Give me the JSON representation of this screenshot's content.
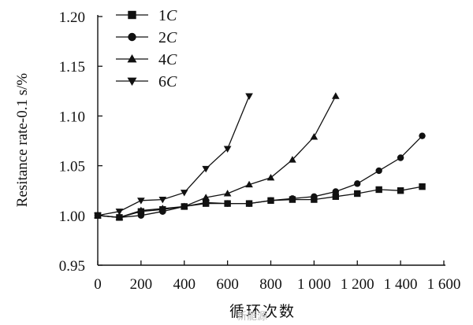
{
  "chart_data": {
    "type": "line",
    "title": "",
    "xlabel": "循环次数",
    "ylabel": "Resitance rate-0.1 s/%",
    "xlim": [
      0,
      1600
    ],
    "ylim": [
      0.95,
      1.2
    ],
    "x_ticks": [
      0,
      200,
      400,
      600,
      800,
      1000,
      1200,
      1400,
      1600
    ],
    "x_tick_labels": [
      "0",
      "200",
      "400",
      "600",
      "800",
      "1 000",
      "1 200",
      "1 400",
      "1 600"
    ],
    "y_ticks": [
      0.95,
      1.0,
      1.05,
      1.1,
      1.15,
      1.2
    ],
    "y_tick_labels": [
      "0.95",
      "1.00",
      "1.05",
      "1.10",
      "1.15",
      "1.20"
    ],
    "legend_position": "top-left",
    "grid": false,
    "series": [
      {
        "name": "1C",
        "marker": "square",
        "points": [
          [
            0,
            1.0
          ],
          [
            100,
            0.998
          ],
          [
            200,
            1.004
          ],
          [
            300,
            1.006
          ],
          [
            400,
            1.009
          ],
          [
            500,
            1.012
          ],
          [
            600,
            1.012
          ],
          [
            700,
            1.012
          ],
          [
            800,
            1.015
          ],
          [
            900,
            1.016
          ],
          [
            1000,
            1.016
          ],
          [
            1100,
            1.019
          ],
          [
            1200,
            1.022
          ],
          [
            1300,
            1.026
          ],
          [
            1400,
            1.025
          ],
          [
            1500,
            1.029
          ]
        ]
      },
      {
        "name": "2C",
        "marker": "circle",
        "points": [
          [
            0,
            1.0
          ],
          [
            100,
            0.998
          ],
          [
            200,
            1.0
          ],
          [
            300,
            1.004
          ],
          [
            400,
            1.009
          ],
          [
            500,
            1.013
          ],
          [
            600,
            1.012
          ],
          [
            700,
            1.012
          ],
          [
            800,
            1.015
          ],
          [
            900,
            1.017
          ],
          [
            1000,
            1.019
          ],
          [
            1100,
            1.024
          ],
          [
            1200,
            1.032
          ],
          [
            1300,
            1.045
          ],
          [
            1400,
            1.058
          ],
          [
            1500,
            1.08
          ]
        ]
      },
      {
        "name": "4C",
        "marker": "triangle-up",
        "points": [
          [
            0,
            1.0
          ],
          [
            100,
            0.998
          ],
          [
            200,
            1.005
          ],
          [
            300,
            1.007
          ],
          [
            400,
            1.009
          ],
          [
            500,
            1.018
          ],
          [
            600,
            1.022
          ],
          [
            700,
            1.031
          ],
          [
            800,
            1.038
          ],
          [
            900,
            1.056
          ],
          [
            1000,
            1.079
          ],
          [
            1100,
            1.12
          ]
        ]
      },
      {
        "name": "6C",
        "marker": "triangle-down",
        "points": [
          [
            0,
            1.0
          ],
          [
            100,
            1.004
          ],
          [
            200,
            1.015
          ],
          [
            300,
            1.016
          ],
          [
            400,
            1.023
          ],
          [
            500,
            1.047
          ],
          [
            600,
            1.067
          ],
          [
            700,
            1.12
          ]
        ]
      }
    ]
  },
  "watermark": "新能源"
}
